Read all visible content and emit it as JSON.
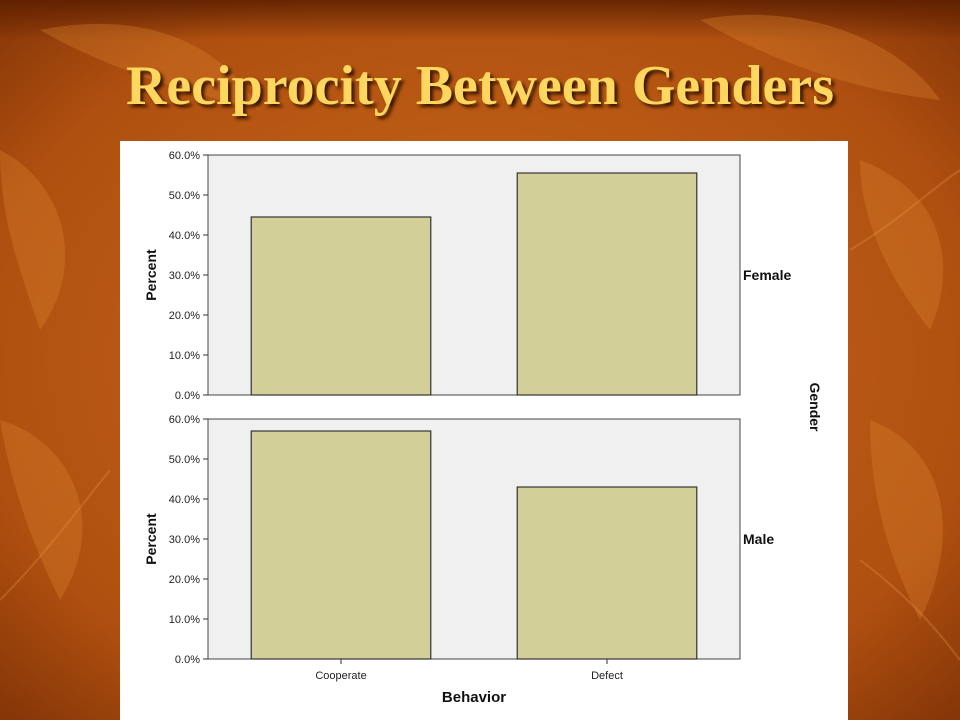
{
  "slide": {
    "title": "Reciprocity Between Genders"
  },
  "colors": {
    "bar_fill": "#d3cf98",
    "plot_background": "#f0f0f0",
    "title_text": "#ffd75e",
    "slide_background": "#b85a10"
  },
  "chart_data": {
    "type": "bar",
    "categories": [
      "Cooperate",
      "Defect"
    ],
    "xlabel": "Behavior",
    "ylabel": "Percent",
    "panel_variable": "Gender",
    "ylim": [
      0,
      60
    ],
    "yticks": [
      "0.0%",
      "10.0%",
      "20.0%",
      "30.0%",
      "40.0%",
      "50.0%",
      "60.0%"
    ],
    "grid": false,
    "panels": [
      {
        "name": "Female",
        "values": [
          44.5,
          55.5
        ]
      },
      {
        "name": "Male",
        "values": [
          57.0,
          43.0
        ]
      }
    ]
  }
}
